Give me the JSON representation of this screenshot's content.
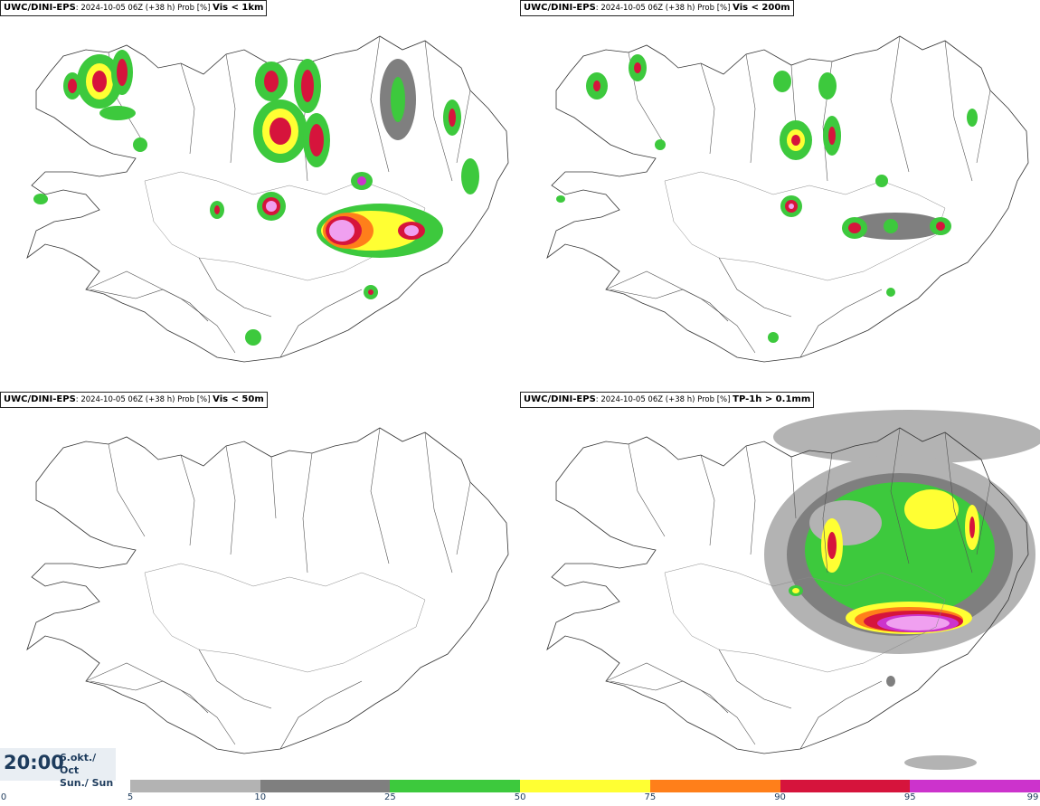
{
  "panels": [
    {
      "source": "UWC/DINI-EPS",
      "run": ": 2024-10-05 06Z (+38 h) Prob [%]",
      "variable": "Vis < 1km"
    },
    {
      "source": "UWC/DINI-EPS",
      "run": ": 2024-10-05 06Z (+38 h) Prob [%]",
      "variable": "Vis < 200m"
    },
    {
      "source": "UWC/DINI-EPS",
      "run": ": 2024-10-05 06Z (+38 h) Prob [%]",
      "variable": "Vis < 50m"
    },
    {
      "source": "UWC/DINI-EPS",
      "run": ": 2024-10-05 06Z (+38 h) Prob [%]",
      "variable": "TP-1h > 0.1mm"
    }
  ],
  "valid_time": {
    "time": "20:00",
    "date_line1": "6.okt./ Oct",
    "date_line2": "Sun./ Sun"
  },
  "colorbar": {
    "ticks": [
      "0",
      "5",
      "10",
      "25",
      "50",
      "75",
      "90",
      "95",
      "99"
    ],
    "colors": [
      "#b3b3b3",
      "#7f7f7f",
      "#3dc93d",
      "#ffff33",
      "#ff7f1a",
      "#d6143c",
      "#cc33cc"
    ]
  }
}
